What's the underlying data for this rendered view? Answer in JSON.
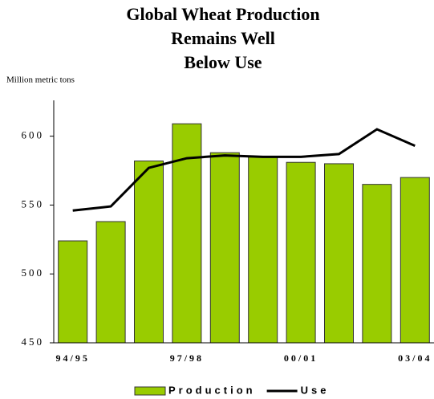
{
  "chart_data": {
    "type": "bar_line",
    "title": [
      "Global Wheat Production",
      "Remains Well",
      "Below Use"
    ],
    "y_label": "Million metric tons",
    "categories": [
      "94/95",
      null,
      null,
      "97/98",
      null,
      null,
      "00/01",
      null,
      null,
      "03/04"
    ],
    "series": [
      {
        "name": "Production",
        "type": "bar",
        "color": "#99cc00",
        "values": [
          524,
          538,
          582,
          609,
          588,
          585,
          581,
          580,
          565,
          570
        ]
      },
      {
        "name": "Use",
        "type": "line",
        "color": "#000000",
        "values": [
          546,
          549,
          577,
          584,
          586,
          585,
          585,
          587,
          605,
          593
        ]
      }
    ],
    "ylim": [
      450,
      626
    ],
    "yticks": [
      450,
      500,
      550,
      600
    ]
  }
}
